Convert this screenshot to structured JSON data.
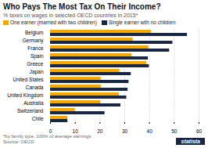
{
  "chart_data": {
    "type": "bar",
    "orientation": "horizontal",
    "title": "Who Pays The Most Tax On Their Income?",
    "subtitle": "% taxes on wages in selected OECD countries in 2015*",
    "categories": [
      "Belgium",
      "Germany",
      "France",
      "Spain",
      "Greece",
      "Japan",
      "United States",
      "Canada",
      "United Kingdom",
      "Australia",
      "Switzerland",
      "Chile"
    ],
    "series": [
      {
        "name": "One earner (married with two children)",
        "color": "#f5a800",
        "values": [
          40.7,
          33.4,
          39.7,
          32.9,
          38.9,
          28.0,
          20.4,
          20.5,
          27.8,
          20.3,
          10.0,
          7.0
        ]
      },
      {
        "name": "Single earner with no children",
        "color": "#1a2744",
        "values": [
          55.3,
          49.4,
          48.1,
          39.5,
          39.9,
          32.6,
          31.7,
          31.3,
          30.8,
          28.4,
          22.0,
          7.0
        ]
      }
    ],
    "xlim": [
      0,
      60
    ],
    "xticks": [
      0,
      10,
      20,
      30,
      40,
      50,
      60
    ],
    "grid": true,
    "legend": "top",
    "annotations": [
      "*by family type, 100% of average earnings",
      "Source: OECD",
      "statista"
    ]
  }
}
